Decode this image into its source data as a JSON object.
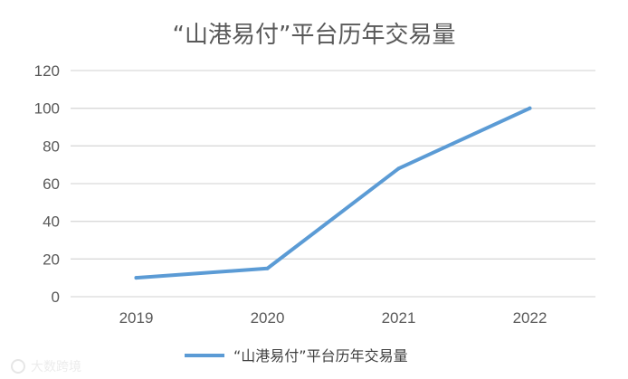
{
  "chart_data": {
    "type": "line",
    "title": "“山港易付”平台历年交易量",
    "xlabel": "",
    "ylabel": "",
    "categories": [
      "2019",
      "2020",
      "2021",
      "2022"
    ],
    "series": [
      {
        "name": "“山港易付”平台历年交易量",
        "values": [
          10,
          15,
          68,
          100
        ]
      }
    ],
    "yticks": [
      "0",
      "20",
      "40",
      "60",
      "80",
      "100",
      "120"
    ],
    "ylim": [
      0,
      120
    ],
    "grid": true,
    "legend_position": "bottom",
    "colors": {
      "series": "#5b9bd5",
      "grid": "#d9d9d9",
      "text": "#595959"
    }
  },
  "watermark": {
    "text": "大数跨境"
  }
}
